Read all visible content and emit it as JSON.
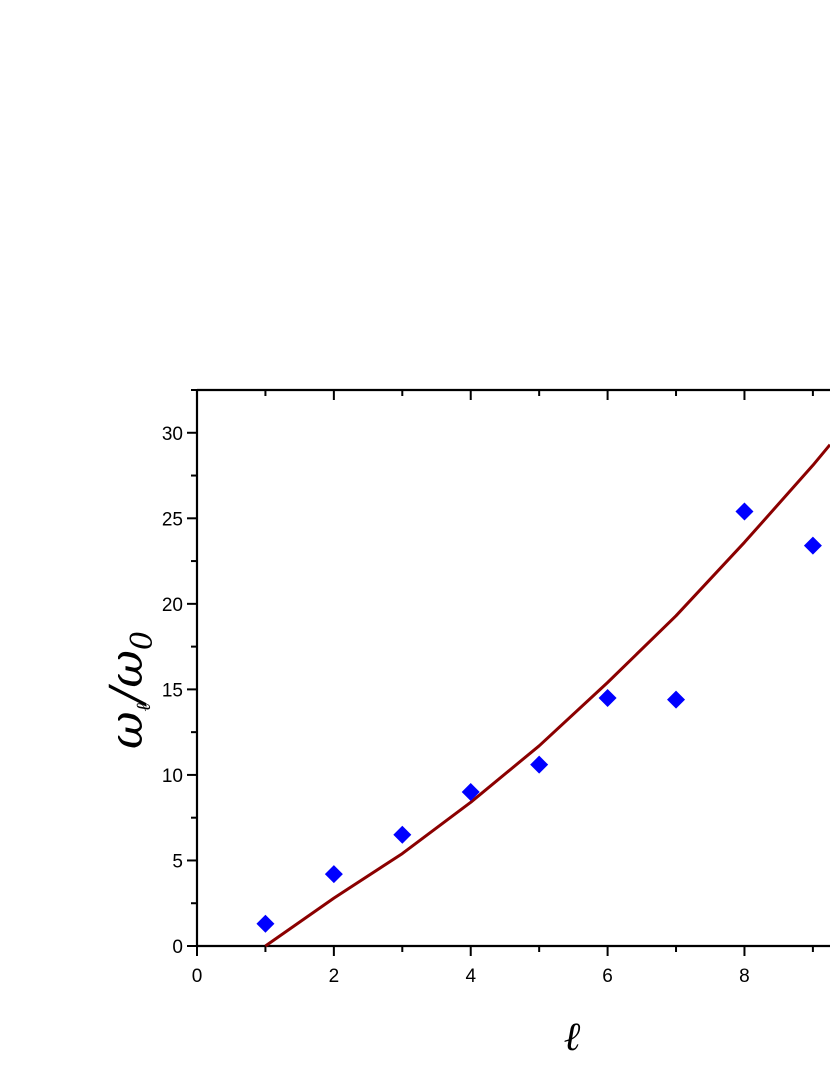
{
  "chart_data": {
    "type": "scatter",
    "xlabel": "ℓ",
    "ylabel": "ω",
    "ylabel_sub1": "ℓ",
    "ylabel_slash": "/ω",
    "ylabel_sub2": "0",
    "xlim": [
      0,
      9.25
    ],
    "ylim": [
      0,
      32.5
    ],
    "x_ticks": [
      0,
      2,
      4,
      6,
      8
    ],
    "y_ticks": [
      0,
      5,
      10,
      15,
      20,
      25,
      30
    ],
    "grid": false,
    "series": [
      {
        "kind": "markers",
        "marker": "diamond",
        "color": "#0000ff",
        "x": [
          1,
          2,
          3,
          4,
          5,
          6,
          7,
          8,
          9
        ],
        "y": [
          1.3,
          4.2,
          6.5,
          9.0,
          10.6,
          14.5,
          14.4,
          25.4,
          23.4
        ]
      },
      {
        "kind": "line",
        "color": "#8b0000",
        "x": [
          1,
          2,
          3,
          4,
          5,
          6,
          7,
          8,
          9,
          9.25
        ],
        "y": [
          0,
          2.8,
          5.4,
          8.4,
          11.7,
          15.4,
          19.3,
          23.6,
          28.1,
          29.3
        ]
      }
    ]
  }
}
